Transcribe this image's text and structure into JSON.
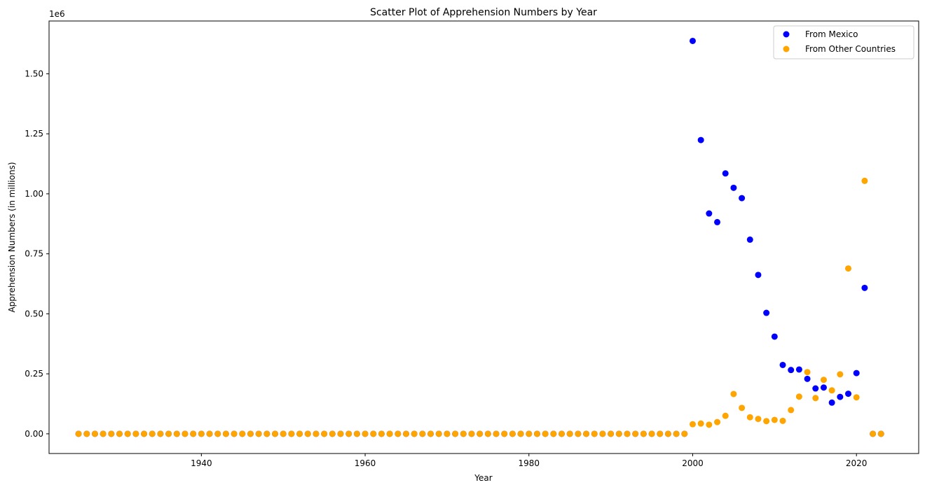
{
  "chart_data": {
    "type": "scatter",
    "title": "Scatter Plot of Apprehension Numbers by Year",
    "xlabel": "Year",
    "ylabel": "Apprehension Numbers (in millions)",
    "y_offset_label": "1e6",
    "xlim": [
      1921.4,
      2027.6
    ],
    "ylim": [
      -0.082,
      1.72
    ],
    "x_ticks": [
      1940,
      1960,
      1980,
      2000,
      2020
    ],
    "y_ticks": [
      0.0,
      0.25,
      0.5,
      0.75,
      1.0,
      1.25,
      1.5
    ],
    "x_tick_labels": [
      "1940",
      "1960",
      "1980",
      "2000",
      "2020"
    ],
    "y_tick_labels": [
      "0.00",
      "0.25",
      "0.50",
      "0.75",
      "1.00",
      "1.25",
      "1.50"
    ],
    "grid": false,
    "legend_position": "top-right",
    "series": [
      {
        "name": "From Mexico",
        "color": "#0000ff",
        "x": [
          1925,
          1926,
          1927,
          1928,
          1929,
          1930,
          1931,
          1932,
          1933,
          1934,
          1935,
          1936,
          1937,
          1938,
          1939,
          1940,
          1941,
          1942,
          1943,
          1944,
          1945,
          1946,
          1947,
          1948,
          1949,
          1950,
          1951,
          1952,
          1953,
          1954,
          1955,
          1956,
          1957,
          1958,
          1959,
          1960,
          1961,
          1962,
          1963,
          1964,
          1965,
          1966,
          1967,
          1968,
          1969,
          1970,
          1971,
          1972,
          1973,
          1974,
          1975,
          1976,
          1977,
          1978,
          1979,
          1980,
          1981,
          1982,
          1983,
          1984,
          1985,
          1986,
          1987,
          1988,
          1989,
          1990,
          1991,
          1992,
          1993,
          1994,
          1995,
          1996,
          1997,
          1998,
          1999,
          2000,
          2001,
          2002,
          2003,
          2004,
          2005,
          2006,
          2007,
          2008,
          2009,
          2010,
          2011,
          2012,
          2013,
          2014,
          2015,
          2016,
          2017,
          2018,
          2019,
          2020,
          2021,
          2022,
          2023
        ],
        "y": [
          0,
          0,
          0,
          0,
          0,
          0,
          0,
          0,
          0,
          0,
          0,
          0,
          0,
          0,
          0,
          0,
          0,
          0,
          0,
          0,
          0,
          0,
          0,
          0,
          0,
          0,
          0,
          0,
          0,
          0,
          0,
          0,
          0,
          0,
          0,
          0,
          0,
          0,
          0,
          0,
          0,
          0,
          0,
          0,
          0,
          0,
          0,
          0,
          0,
          0,
          0,
          0,
          0,
          0,
          0,
          0,
          0,
          0,
          0,
          0,
          0,
          0,
          0,
          0,
          0,
          0,
          0,
          0,
          0,
          0,
          0,
          0,
          0,
          0,
          0,
          1.637,
          1.224,
          0.918,
          0.882,
          1.085,
          1.025,
          0.982,
          0.809,
          0.662,
          0.504,
          0.405,
          0.287,
          0.266,
          0.268,
          0.229,
          0.189,
          0.193,
          0.13,
          0.154,
          0.167,
          0.253,
          0.608,
          0,
          0
        ]
      },
      {
        "name": "From Other Countries",
        "color": "#ffa500",
        "x": [
          1925,
          1926,
          1927,
          1928,
          1929,
          1930,
          1931,
          1932,
          1933,
          1934,
          1935,
          1936,
          1937,
          1938,
          1939,
          1940,
          1941,
          1942,
          1943,
          1944,
          1945,
          1946,
          1947,
          1948,
          1949,
          1950,
          1951,
          1952,
          1953,
          1954,
          1955,
          1956,
          1957,
          1958,
          1959,
          1960,
          1961,
          1962,
          1963,
          1964,
          1965,
          1966,
          1967,
          1968,
          1969,
          1970,
          1971,
          1972,
          1973,
          1974,
          1975,
          1976,
          1977,
          1978,
          1979,
          1980,
          1981,
          1982,
          1983,
          1984,
          1985,
          1986,
          1987,
          1988,
          1989,
          1990,
          1991,
          1992,
          1993,
          1994,
          1995,
          1996,
          1997,
          1998,
          1999,
          2000,
          2001,
          2002,
          2003,
          2004,
          2005,
          2006,
          2007,
          2008,
          2009,
          2010,
          2011,
          2012,
          2013,
          2014,
          2015,
          2016,
          2017,
          2018,
          2019,
          2020,
          2021,
          2022,
          2023
        ],
        "y": [
          0,
          0,
          0,
          0,
          0,
          0,
          0,
          0,
          0,
          0,
          0,
          0,
          0,
          0,
          0,
          0,
          0,
          0,
          0,
          0,
          0,
          0,
          0,
          0,
          0,
          0,
          0,
          0,
          0,
          0,
          0,
          0,
          0,
          0,
          0,
          0,
          0,
          0,
          0,
          0,
          0,
          0,
          0,
          0,
          0,
          0,
          0,
          0,
          0,
          0,
          0,
          0,
          0,
          0,
          0,
          0,
          0,
          0,
          0,
          0,
          0,
          0,
          0,
          0,
          0,
          0,
          0,
          0,
          0,
          0,
          0,
          0,
          0,
          0,
          0,
          0.04,
          0.043,
          0.038,
          0.049,
          0.075,
          0.166,
          0.108,
          0.069,
          0.062,
          0.053,
          0.058,
          0.054,
          0.099,
          0.155,
          0.257,
          0.149,
          0.225,
          0.181,
          0.248,
          0.689,
          0.152,
          1.054,
          0,
          0
        ]
      }
    ]
  }
}
